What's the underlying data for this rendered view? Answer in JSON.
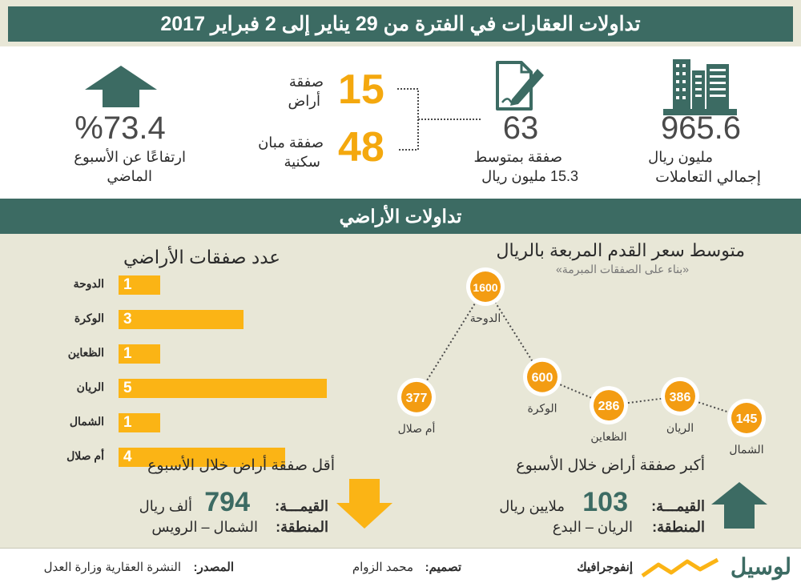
{
  "header": {
    "title": "تداولات العقارات في الفترة من 29 يناير إلى 2 فبراير 2017"
  },
  "stats": {
    "total_value": "965.6",
    "total_unit": "مليون ريال",
    "total_label": "إجمالي التعاملات",
    "deals_count": "63",
    "deals_label_1": "صفقة بمتوسط",
    "deals_label_2": "15.3 مليون ريال",
    "land_deals": "15",
    "land_label_1": "صفقة",
    "land_label_2": "أراض",
    "residential_deals": "48",
    "residential_label_1": "صفقة مبان",
    "residential_label_2": "سكنية",
    "change_value": "%73.4",
    "change_label_1": "ارتفاعًا عن الأسبوع",
    "change_label_2": "الماضي"
  },
  "section": {
    "title": "تداولات الأراضي"
  },
  "chart_data": [
    {
      "type": "bar",
      "title": "عدد صفقات الأراضي",
      "categories": [
        "الدوحة",
        "الوكرة",
        "الظعاين",
        "الريان",
        "الشمال",
        "أم صلال"
      ],
      "values": [
        1,
        3,
        1,
        5,
        1,
        4
      ]
    },
    {
      "type": "line",
      "title": "متوسط سعر القدم المربعة بالريال",
      "subtitle": "«بناء على الصفقات المبرمة»",
      "categories": [
        "أم صلال",
        "الدوحة",
        "الوكرة",
        "الظعاين",
        "الريان",
        "الشمال"
      ],
      "values": [
        377,
        1600,
        600,
        286,
        386,
        145
      ]
    }
  ],
  "max_deal": {
    "title": "أكبر صفقة أراض خلال الأسبوع",
    "value_label": "القيمـــة:",
    "value": "103",
    "value_unit": "ملايين ريال",
    "area_label": "المنطقة:",
    "area": "الريان – البدع"
  },
  "min_deal": {
    "title": "أقل صفقة أراض خلال الأسبوع",
    "value_label": "القيمـــة:",
    "value": "794",
    "value_unit": "ألف ريال",
    "area_label": "المنطقة:",
    "area": "الشمال – الرويس"
  },
  "footer": {
    "brand": "لوسيل",
    "infographic": "إنفوجرافيك",
    "design_label": "تصميم:",
    "design_name": "محمد الزوام",
    "source_label": "المصدر:",
    "source_text": "النشرة العقارية وزارة العدل"
  },
  "colors": {
    "teal": "#3c6b63",
    "orange": "#fbb415",
    "beige": "#e8e7d7",
    "dark": "#4a4a4a"
  }
}
